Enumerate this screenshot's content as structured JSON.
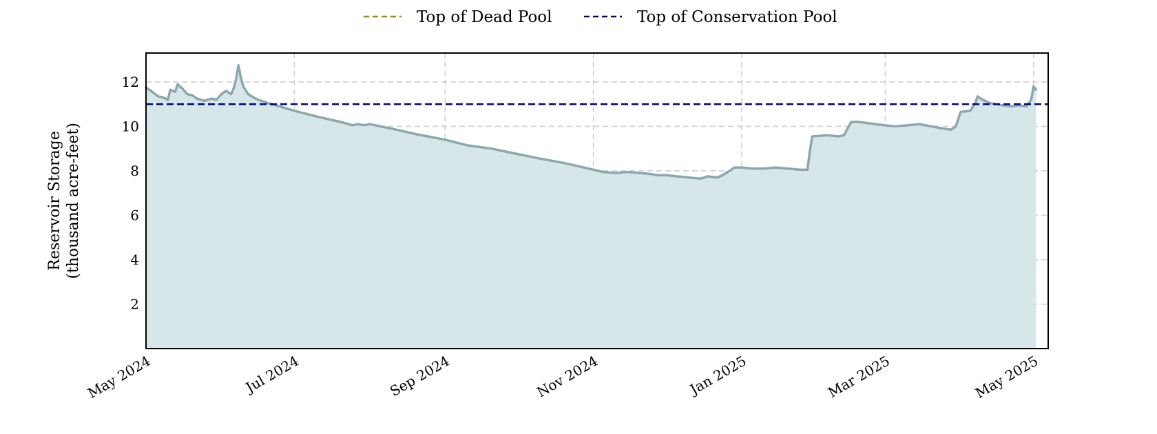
{
  "chart_data": {
    "type": "area",
    "title": "",
    "xlabel": "",
    "ylabel": [
      "Reservoir Storage",
      "(thousand acre-feet)"
    ],
    "xlim": [
      "2024-05-01",
      "2025-05-07"
    ],
    "ylim": [
      0,
      13.3
    ],
    "x_ticks": [
      "2024-05-01",
      "2024-07-01",
      "2024-09-01",
      "2024-11-01",
      "2025-01-01",
      "2025-03-01",
      "2025-05-01"
    ],
    "x_tick_labels": [
      "May 2024",
      "Jul 2024",
      "Sep 2024",
      "Nov 2024",
      "Jan 2025",
      "Mar 2025",
      "May 2025"
    ],
    "y_ticks": [
      2,
      4,
      6,
      8,
      10,
      12
    ],
    "y_tick_labels": [
      "2",
      "4",
      "6",
      "8",
      "10",
      "12"
    ],
    "grid": true,
    "legend_position": "top-center",
    "legend": [
      {
        "label": "Top of Dead Pool",
        "color": "#9a8c00",
        "style": "dashed"
      },
      {
        "label": "Top of Conservation Pool",
        "color": "#00008b",
        "style": "dashed"
      }
    ],
    "reference_lines": [
      {
        "name": "Top of Conservation Pool",
        "y": 11.0,
        "color": "#00008b"
      }
    ],
    "series": [
      {
        "line_color": "#8ba8ad",
        "fill_color": "#d7e6e8",
        "points": [
          [
            "2024-05-01",
            11.75
          ],
          [
            "2024-05-03",
            11.6
          ],
          [
            "2024-05-06",
            11.35
          ],
          [
            "2024-05-08",
            11.3
          ],
          [
            "2024-05-10",
            11.2
          ],
          [
            "2024-05-11",
            11.65
          ],
          [
            "2024-05-13",
            11.55
          ],
          [
            "2024-05-14",
            11.9
          ],
          [
            "2024-05-16",
            11.7
          ],
          [
            "2024-05-18",
            11.45
          ],
          [
            "2024-05-20",
            11.4
          ],
          [
            "2024-05-22",
            11.25
          ],
          [
            "2024-05-25",
            11.15
          ],
          [
            "2024-05-28",
            11.25
          ],
          [
            "2024-05-30",
            11.2
          ],
          [
            "2024-06-01",
            11.45
          ],
          [
            "2024-06-03",
            11.6
          ],
          [
            "2024-06-05",
            11.45
          ],
          [
            "2024-06-06",
            11.7
          ],
          [
            "2024-06-07",
            12.1
          ],
          [
            "2024-06-08",
            12.75
          ],
          [
            "2024-06-09",
            12.2
          ],
          [
            "2024-06-10",
            11.8
          ],
          [
            "2024-06-12",
            11.45
          ],
          [
            "2024-06-15",
            11.25
          ],
          [
            "2024-06-20",
            11.05
          ],
          [
            "2024-06-25",
            10.9
          ],
          [
            "2024-07-01",
            10.7
          ],
          [
            "2024-07-10",
            10.45
          ],
          [
            "2024-07-20",
            10.2
          ],
          [
            "2024-07-25",
            10.05
          ],
          [
            "2024-07-27",
            10.1
          ],
          [
            "2024-07-30",
            10.05
          ],
          [
            "2024-08-01",
            10.1
          ],
          [
            "2024-08-10",
            9.9
          ],
          [
            "2024-08-20",
            9.65
          ],
          [
            "2024-09-01",
            9.4
          ],
          [
            "2024-09-10",
            9.15
          ],
          [
            "2024-09-20",
            9.0
          ],
          [
            "2024-10-01",
            8.75
          ],
          [
            "2024-10-10",
            8.55
          ],
          [
            "2024-10-20",
            8.35
          ],
          [
            "2024-11-01",
            8.05
          ],
          [
            "2024-11-05",
            7.95
          ],
          [
            "2024-11-10",
            7.9
          ],
          [
            "2024-11-15",
            7.95
          ],
          [
            "2024-11-20",
            7.9
          ],
          [
            "2024-11-25",
            7.85
          ],
          [
            "2024-11-27",
            7.8
          ],
          [
            "2024-12-01",
            7.8
          ],
          [
            "2024-12-10",
            7.7
          ],
          [
            "2024-12-15",
            7.65
          ],
          [
            "2024-12-18",
            7.75
          ],
          [
            "2024-12-22",
            7.7
          ],
          [
            "2024-12-24",
            7.8
          ],
          [
            "2024-12-27",
            8.0
          ],
          [
            "2024-12-29",
            8.15
          ],
          [
            "2025-01-01",
            8.15
          ],
          [
            "2025-01-05",
            8.1
          ],
          [
            "2025-01-10",
            8.1
          ],
          [
            "2025-01-15",
            8.15
          ],
          [
            "2025-01-20",
            8.1
          ],
          [
            "2025-01-25",
            8.05
          ],
          [
            "2025-01-28",
            8.05
          ],
          [
            "2025-01-29",
            8.9
          ],
          [
            "2025-01-30",
            9.55
          ],
          [
            "2025-02-05",
            9.6
          ],
          [
            "2025-02-10",
            9.55
          ],
          [
            "2025-02-12",
            9.6
          ],
          [
            "2025-02-15",
            10.2
          ],
          [
            "2025-02-18",
            10.2
          ],
          [
            "2025-02-25",
            10.1
          ],
          [
            "2025-03-01",
            10.05
          ],
          [
            "2025-03-05",
            10.0
          ],
          [
            "2025-03-10",
            10.05
          ],
          [
            "2025-03-15",
            10.1
          ],
          [
            "2025-03-20",
            10.0
          ],
          [
            "2025-03-25",
            9.9
          ],
          [
            "2025-03-28",
            9.85
          ],
          [
            "2025-03-30",
            10.0
          ],
          [
            "2025-04-01",
            10.65
          ],
          [
            "2025-04-05",
            10.7
          ],
          [
            "2025-04-07",
            11.05
          ],
          [
            "2025-04-08",
            11.35
          ],
          [
            "2025-04-10",
            11.2
          ],
          [
            "2025-04-13",
            11.05
          ],
          [
            "2025-04-18",
            10.95
          ],
          [
            "2025-04-22",
            10.9
          ],
          [
            "2025-04-25",
            10.95
          ],
          [
            "2025-04-28",
            10.9
          ],
          [
            "2025-04-30",
            11.2
          ],
          [
            "2025-05-01",
            11.8
          ],
          [
            "2025-05-02",
            11.65
          ]
        ]
      }
    ]
  }
}
